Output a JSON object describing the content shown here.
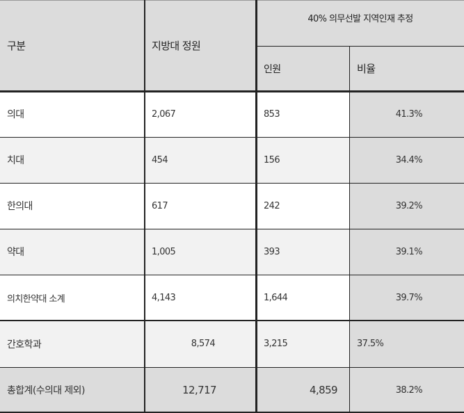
{
  "header": {
    "category": "구분",
    "quota": "지방대 정원",
    "group": "40% 의무선발 지역인재 추정",
    "people": "인원",
    "ratio": "비율"
  },
  "rows": [
    {
      "name": "의대",
      "quota": "2,067",
      "people": "853",
      "ratio": "41.3%"
    },
    {
      "name": "치대",
      "quota": "454",
      "people": "156",
      "ratio": "34.4%"
    },
    {
      "name": "한의대",
      "quota": "617",
      "people": "242",
      "ratio": "39.2%"
    },
    {
      "name": "약대",
      "quota": "1,005",
      "people": "393",
      "ratio": "39.1%"
    },
    {
      "name": "의치한약대 소계",
      "quota": "4,143",
      "people": "1,644",
      "ratio": "39.7%"
    },
    {
      "name": "간호학과",
      "quota": "8,574",
      "people": "3,215",
      "ratio": "37.5%"
    },
    {
      "name": "총합계(수의대 제외)",
      "quota": "12,717",
      "people": "4,859",
      "ratio": "38.2%"
    }
  ],
  "colors": {
    "header_bg": "#dcdcdc",
    "alt_row_bg": "#f2f2f2",
    "ratio_col_bg": "#dcdcdc",
    "border": "#222222"
  }
}
